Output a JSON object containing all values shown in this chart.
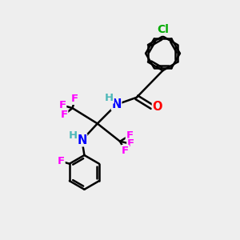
{
  "bg_color": "#eeeeee",
  "bond_color": "#000000",
  "bond_width": 1.8,
  "atom_colors": {
    "C": "#000000",
    "H": "#4db8b8",
    "N": "#0000ff",
    "O": "#ff0000",
    "F": "#ff00ff",
    "Cl": "#00aa00"
  },
  "font_size": 9.5
}
